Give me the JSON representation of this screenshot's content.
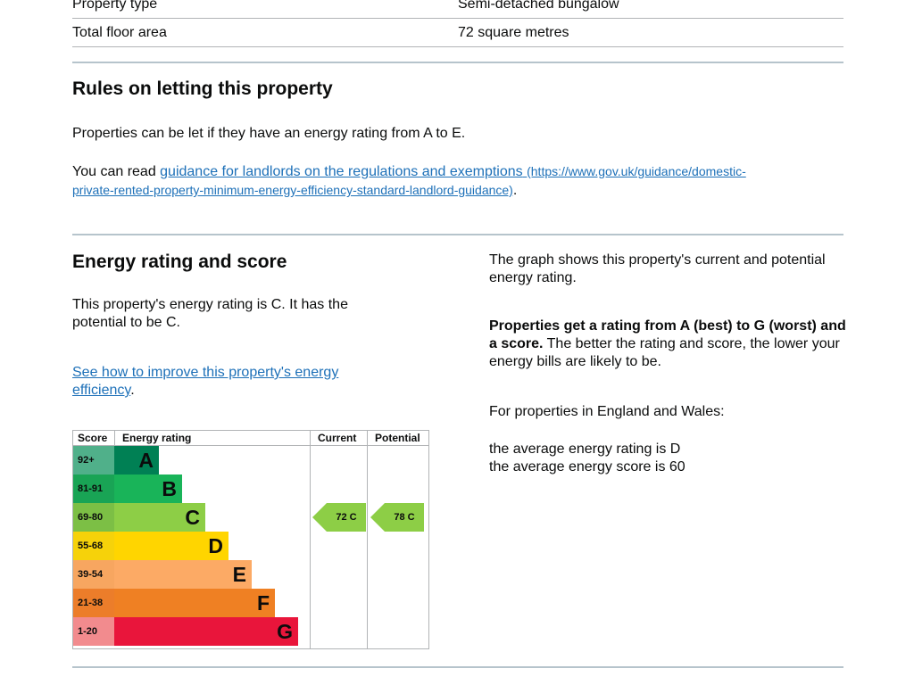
{
  "summary": {
    "rows": [
      {
        "label": "Property type",
        "value": "Semi-detached bungalow"
      },
      {
        "label": "Total floor area",
        "value": "72 square metres"
      }
    ]
  },
  "letting": {
    "heading": "Rules on letting this property",
    "para1": "Properties can be let if they have an energy rating from A to E.",
    "para2_prefix": "You can read ",
    "link_text": "guidance for landlords on the regulations and exemptions",
    "link_url_line1": "(https://www.gov.uk/guidance/domestic-",
    "link_url_line2": "private-rented-property-minimum-energy-efficiency-standard-landlord-guidance)",
    "para2_suffix": "."
  },
  "energy": {
    "heading": "Energy rating and score",
    "para1": "This property's energy rating is C. It has the potential to be C.",
    "improve_link": "See how to improve this property's energy efficiency",
    "improve_suffix": ".",
    "right_para1": "The graph shows this property's current and potential energy rating.",
    "right_bold": "Properties get a rating from A (best) to G (worst) and a score.",
    "right_rest": " The better the rating and score, the lower your energy bills are likely to be.",
    "right_para3": "For properties in England and Wales:",
    "avg_rating": "the average energy rating is D",
    "avg_score": "the average energy score is 60"
  },
  "chart_data": {
    "type": "table",
    "headers": {
      "score": "Score",
      "rating": "Energy rating",
      "current": "Current",
      "potential": "Potential"
    },
    "bands": [
      {
        "range": "92+",
        "letter": "A",
        "color": "#008054",
        "score_bg": "#50b08a"
      },
      {
        "range": "81-91",
        "letter": "B",
        "color": "#19b459",
        "score_bg": "#19a455"
      },
      {
        "range": "69-80",
        "letter": "C",
        "color": "#8dce46",
        "score_bg": "#7cbf45"
      },
      {
        "range": "55-68",
        "letter": "D",
        "color": "#ffd500",
        "score_bg": "#f6d20a"
      },
      {
        "range": "39-54",
        "letter": "E",
        "color": "#fcaa65",
        "score_bg": "#f7a660"
      },
      {
        "range": "21-38",
        "letter": "F",
        "color": "#ef8023",
        "score_bg": "#ec7d2a"
      },
      {
        "range": "1-20",
        "letter": "G",
        "color": "#e9153b",
        "score_bg": "#f28b8e"
      }
    ],
    "current": {
      "score": 72,
      "letter": "C",
      "label": "72 C",
      "color": "#8dce46"
    },
    "potential": {
      "score": 78,
      "letter": "C",
      "label": "78 C",
      "color": "#8dce46"
    }
  }
}
